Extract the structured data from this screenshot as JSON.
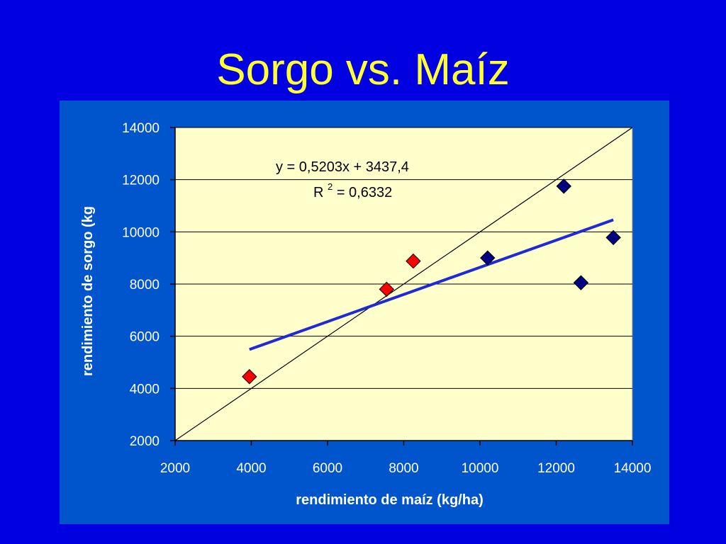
{
  "slide": {
    "title": "Sorgo vs. Maíz"
  },
  "colors": {
    "background": "#0000e0",
    "panel": "#0055cc",
    "plot_area": "#ffffcc",
    "title": "#ffff33",
    "axis_text": "#ffffff",
    "trend": "#1f2ad6",
    "identity": "#000000",
    "marker_red": "#ff0000",
    "marker_blue": "#000080"
  },
  "chart_data": {
    "type": "scatter",
    "xlabel": "rendimiento de maíz (kg/ha)",
    "ylabel": "rendimiento de sorgo (kg",
    "xlim": [
      2000,
      14000
    ],
    "ylim": [
      2000,
      14000
    ],
    "x_ticks": [
      "2000",
      "4000",
      "6000",
      "8000",
      "10000",
      "12000",
      "14000"
    ],
    "y_ticks": [
      "2000",
      "4000",
      "6000",
      "8000",
      "10000",
      "12000",
      "14000"
    ],
    "grid": "horizontal",
    "series": [
      {
        "marker": "diamond",
        "color": "#ff0000",
        "points": [
          {
            "x": 3950,
            "y": 4450
          },
          {
            "x": 7550,
            "y": 7800
          },
          {
            "x": 8250,
            "y": 8880
          }
        ]
      },
      {
        "marker": "diamond",
        "color": "#000080",
        "points": [
          {
            "x": 10200,
            "y": 9000
          },
          {
            "x": 12200,
            "y": 11750
          },
          {
            "x": 12650,
            "y": 8050
          },
          {
            "x": 13500,
            "y": 9780
          }
        ]
      }
    ],
    "trendline": {
      "slope": 0.5203,
      "intercept": 3437.4,
      "x_range": [
        3950,
        13500
      ]
    },
    "reference_line": {
      "type": "identity",
      "from": [
        2000,
        2000
      ],
      "to": [
        14000,
        14000
      ]
    },
    "annotations": {
      "equation": "y = 0,5203x + 3437,4",
      "r2_prefix": "R",
      "r2_exponent": "2",
      "r2_value": " = 0,6332"
    }
  }
}
